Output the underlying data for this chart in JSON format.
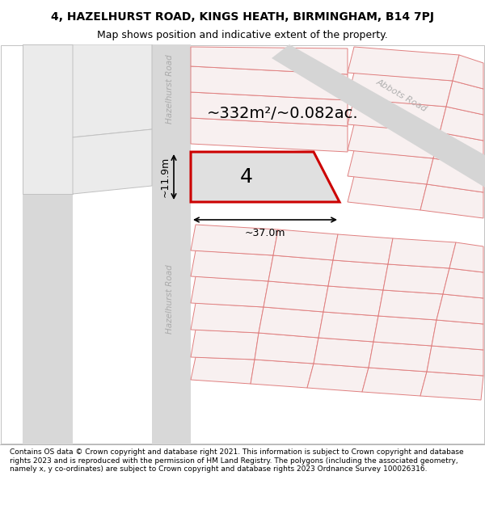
{
  "title_line1": "4, HAZELHURST ROAD, KINGS HEATH, BIRMINGHAM, B14 7PJ",
  "title_line2": "Map shows position and indicative extent of the property.",
  "footer_text": "Contains OS data © Crown copyright and database right 2021. This information is subject to Crown copyright and database rights 2023 and is reproduced with the permission of HM Land Registry. The polygons (including the associated geometry, namely x, y co-ordinates) are subject to Crown copyright and database rights 2023 Ordnance Survey 100026316.",
  "area_label": "~332m²/~0.082ac.",
  "number_label": "4",
  "width_label": "~37.0m",
  "height_label": "~11.9m",
  "map_bg": "#ffffff",
  "road_strip_color": "#d8d8d8",
  "plot_fill": "#e0e0e0",
  "plot_outline_color": "#cc0000",
  "line_color": "#e08080",
  "road_label_color": "#aaaaaa",
  "abbots_road_label_color": "#b0b0b0",
  "title_fontsize": 10,
  "subtitle_fontsize": 9,
  "footer_fontsize": 6.5,
  "area_fontsize": 14,
  "number_fontsize": 18,
  "figsize": [
    6.0,
    6.25
  ],
  "dpi": 100
}
